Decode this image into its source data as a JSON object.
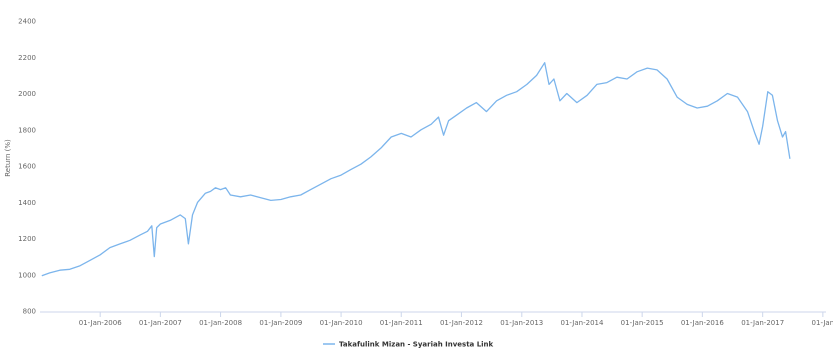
{
  "chart_data": {
    "type": "line",
    "ylabel": "Return (%)",
    "ylim": [
      800,
      2400
    ],
    "yticks": [
      800,
      1000,
      1200,
      1400,
      1600,
      1800,
      2000,
      2200,
      2400
    ],
    "xlim": [
      "2005-01-01",
      "2018-01-20"
    ],
    "xticks": [
      {
        "date": "2006-01-01",
        "label": "01-Jan-2006"
      },
      {
        "date": "2007-01-01",
        "label": "01-Jan-2007"
      },
      {
        "date": "2008-01-01",
        "label": "01-Jan-2008"
      },
      {
        "date": "2009-01-01",
        "label": "01-Jan-2009"
      },
      {
        "date": "2010-01-01",
        "label": "01-Jan-2010"
      },
      {
        "date": "2011-01-01",
        "label": "01-Jan-2011"
      },
      {
        "date": "2012-01-01",
        "label": "01-Jan-2012"
      },
      {
        "date": "2013-01-01",
        "label": "01-Jan-2013"
      },
      {
        "date": "2014-01-01",
        "label": "01-Jan-2014"
      },
      {
        "date": "2015-01-01",
        "label": "01-Jan-2015"
      },
      {
        "date": "2016-01-01",
        "label": "01-Jan-2016"
      },
      {
        "date": "2017-01-01",
        "label": "01-Jan-2017"
      },
      {
        "date": "2018-01-01",
        "label": "01-Jan"
      }
    ],
    "grid": false,
    "legend_position": "bottom-center",
    "series": [
      {
        "name": "Takafulink Mizan - Syariah Investa Link",
        "color": "#7cb5ec",
        "points": [
          [
            "2005-01-12",
            995
          ],
          [
            "2005-03-01",
            1010
          ],
          [
            "2005-05-01",
            1025
          ],
          [
            "2005-07-01",
            1030
          ],
          [
            "2005-09-01",
            1050
          ],
          [
            "2005-11-01",
            1080
          ],
          [
            "2006-01-01",
            1110
          ],
          [
            "2006-03-01",
            1150
          ],
          [
            "2006-05-01",
            1170
          ],
          [
            "2006-07-01",
            1190
          ],
          [
            "2006-09-01",
            1220
          ],
          [
            "2006-10-15",
            1240
          ],
          [
            "2006-11-10",
            1270
          ],
          [
            "2006-11-25",
            1100
          ],
          [
            "2006-12-10",
            1260
          ],
          [
            "2007-01-01",
            1280
          ],
          [
            "2007-03-01",
            1300
          ],
          [
            "2007-05-01",
            1330
          ],
          [
            "2007-06-01",
            1310
          ],
          [
            "2007-06-20",
            1170
          ],
          [
            "2007-07-15",
            1330
          ],
          [
            "2007-08-15",
            1400
          ],
          [
            "2007-10-01",
            1450
          ],
          [
            "2007-11-01",
            1460
          ],
          [
            "2007-12-01",
            1480
          ],
          [
            "2008-01-01",
            1470
          ],
          [
            "2008-02-01",
            1480
          ],
          [
            "2008-03-01",
            1440
          ],
          [
            "2008-05-01",
            1430
          ],
          [
            "2008-07-01",
            1440
          ],
          [
            "2008-09-01",
            1425
          ],
          [
            "2008-11-01",
            1410
          ],
          [
            "2009-01-01",
            1415
          ],
          [
            "2009-03-01",
            1430
          ],
          [
            "2009-05-01",
            1440
          ],
          [
            "2009-07-01",
            1470
          ],
          [
            "2009-09-01",
            1500
          ],
          [
            "2009-11-01",
            1530
          ],
          [
            "2010-01-01",
            1550
          ],
          [
            "2010-03-01",
            1580
          ],
          [
            "2010-05-01",
            1610
          ],
          [
            "2010-07-01",
            1650
          ],
          [
            "2010-09-01",
            1700
          ],
          [
            "2010-11-01",
            1760
          ],
          [
            "2011-01-01",
            1780
          ],
          [
            "2011-03-01",
            1760
          ],
          [
            "2011-05-01",
            1800
          ],
          [
            "2011-07-01",
            1830
          ],
          [
            "2011-08-15",
            1870
          ],
          [
            "2011-09-15",
            1770
          ],
          [
            "2011-10-15",
            1850
          ],
          [
            "2011-12-01",
            1880
          ],
          [
            "2012-02-01",
            1920
          ],
          [
            "2012-04-01",
            1950
          ],
          [
            "2012-06-01",
            1900
          ],
          [
            "2012-08-01",
            1960
          ],
          [
            "2012-10-01",
            1990
          ],
          [
            "2012-12-01",
            2010
          ],
          [
            "2013-02-01",
            2050
          ],
          [
            "2013-04-01",
            2100
          ],
          [
            "2013-05-20",
            2170
          ],
          [
            "2013-06-15",
            2050
          ],
          [
            "2013-07-15",
            2080
          ],
          [
            "2013-08-20",
            1960
          ],
          [
            "2013-10-01",
            2000
          ],
          [
            "2013-12-01",
            1950
          ],
          [
            "2014-02-01",
            1990
          ],
          [
            "2014-04-01",
            2050
          ],
          [
            "2014-06-01",
            2060
          ],
          [
            "2014-08-01",
            2090
          ],
          [
            "2014-10-01",
            2080
          ],
          [
            "2014-12-01",
            2120
          ],
          [
            "2015-02-01",
            2140
          ],
          [
            "2015-04-01",
            2130
          ],
          [
            "2015-06-01",
            2080
          ],
          [
            "2015-08-01",
            1980
          ],
          [
            "2015-10-01",
            1940
          ],
          [
            "2015-12-01",
            1920
          ],
          [
            "2016-02-01",
            1930
          ],
          [
            "2016-04-01",
            1960
          ],
          [
            "2016-06-01",
            2000
          ],
          [
            "2016-08-01",
            1980
          ],
          [
            "2016-10-01",
            1900
          ],
          [
            "2016-11-15",
            1780
          ],
          [
            "2016-12-10",
            1720
          ],
          [
            "2017-01-01",
            1820
          ],
          [
            "2017-02-01",
            2010
          ],
          [
            "2017-03-01",
            1990
          ],
          [
            "2017-04-01",
            1850
          ],
          [
            "2017-05-01",
            1760
          ],
          [
            "2017-05-20",
            1790
          ],
          [
            "2017-06-15",
            1640
          ]
        ]
      }
    ]
  }
}
